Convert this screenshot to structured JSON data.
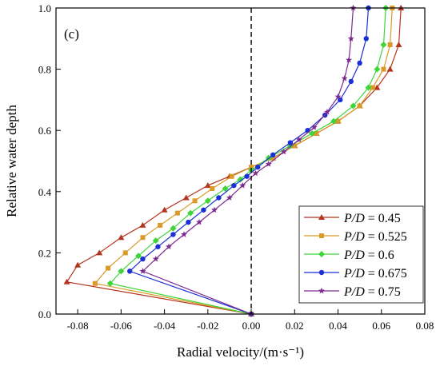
{
  "chart_data": {
    "type": "line",
    "panel_label": "(c)",
    "xlabel": "Radial velocity/(m·s⁻¹)",
    "ylabel": "Relative water depth",
    "xlim": [
      -0.09,
      0.08
    ],
    "ylim": [
      0.0,
      1.0
    ],
    "x_ticks": [
      "-0.08",
      "-0.06",
      "-0.04",
      "-0.02",
      "0.00",
      "0.02",
      "0.04",
      "0.06",
      "0.08"
    ],
    "x_tick_values": [
      -0.08,
      -0.06,
      -0.04,
      -0.02,
      0.0,
      0.02,
      0.04,
      0.06,
      0.08
    ],
    "y_ticks": [
      "0.0",
      "0.2",
      "0.4",
      "0.6",
      "0.8",
      "1.0"
    ],
    "y_tick_values": [
      0.0,
      0.2,
      0.4,
      0.6,
      0.8,
      1.0
    ],
    "reference_line_x": 0.0,
    "grid": false,
    "legend_position": "bottom-right",
    "series": [
      {
        "name": "P/D = 0.45",
        "legend_var": "P/D",
        "legend_value": "= 0.45",
        "color": "#b5341e",
        "marker": "triangle",
        "x": [
          0.0,
          -0.085,
          -0.08,
          -0.07,
          -0.06,
          -0.05,
          -0.04,
          -0.03,
          -0.02,
          -0.01,
          0.0,
          0.01,
          0.02,
          0.03,
          0.04,
          0.05,
          0.058,
          0.064,
          0.068,
          0.069
        ],
        "y": [
          0.0,
          0.105,
          0.16,
          0.2,
          0.25,
          0.29,
          0.34,
          0.38,
          0.42,
          0.45,
          0.48,
          0.51,
          0.55,
          0.59,
          0.63,
          0.68,
          0.74,
          0.8,
          0.88,
          1.0
        ]
      },
      {
        "name": "P/D = 0.525",
        "legend_var": "P/D",
        "legend_value": "= 0.525",
        "color": "#d99a26",
        "marker": "square",
        "x": [
          0.0,
          -0.072,
          -0.066,
          -0.058,
          -0.05,
          -0.042,
          -0.034,
          -0.026,
          -0.018,
          -0.009,
          0.0,
          0.01,
          0.02,
          0.03,
          0.04,
          0.05,
          0.056,
          0.061,
          0.064,
          0.065
        ],
        "y": [
          0.0,
          0.1,
          0.15,
          0.2,
          0.25,
          0.29,
          0.33,
          0.37,
          0.41,
          0.45,
          0.48,
          0.51,
          0.55,
          0.59,
          0.63,
          0.68,
          0.74,
          0.8,
          0.88,
          1.0
        ]
      },
      {
        "name": "P/D = 0.6",
        "legend_var": "P/D",
        "legend_value": "= 0.6",
        "color": "#3fd43a",
        "marker": "diamond",
        "x": [
          0.0,
          -0.065,
          -0.06,
          -0.052,
          -0.044,
          -0.036,
          -0.028,
          -0.02,
          -0.012,
          -0.005,
          0.0,
          0.008,
          0.018,
          0.028,
          0.038,
          0.047,
          0.054,
          0.058,
          0.061,
          0.062
        ],
        "y": [
          0.0,
          0.1,
          0.14,
          0.19,
          0.24,
          0.28,
          0.33,
          0.37,
          0.41,
          0.44,
          0.47,
          0.51,
          0.55,
          0.59,
          0.63,
          0.68,
          0.74,
          0.8,
          0.88,
          1.0
        ]
      },
      {
        "name": "P/D = 0.675",
        "legend_var": "P/D",
        "legend_value": "= 0.675",
        "color": "#1a2fd6",
        "marker": "circle",
        "x": [
          0.0,
          -0.056,
          -0.05,
          -0.043,
          -0.036,
          -0.029,
          -0.022,
          -0.015,
          -0.008,
          -0.002,
          0.003,
          0.01,
          0.018,
          0.026,
          0.034,
          0.041,
          0.046,
          0.05,
          0.053,
          0.054
        ],
        "y": [
          0.0,
          0.14,
          0.18,
          0.22,
          0.26,
          0.3,
          0.34,
          0.38,
          0.42,
          0.45,
          0.48,
          0.52,
          0.56,
          0.6,
          0.65,
          0.7,
          0.76,
          0.82,
          0.9,
          1.0
        ]
      },
      {
        "name": "P/D = 0.75",
        "legend_var": "P/D",
        "legend_value": "= 0.75",
        "color": "#7d2b8f",
        "marker": "star",
        "x": [
          0.0,
          -0.05,
          -0.044,
          -0.038,
          -0.031,
          -0.024,
          -0.017,
          -0.01,
          -0.004,
          0.002,
          0.008,
          0.015,
          0.022,
          0.029,
          0.035,
          0.04,
          0.043,
          0.045,
          0.046,
          0.047
        ],
        "y": [
          0.0,
          0.14,
          0.18,
          0.22,
          0.26,
          0.3,
          0.34,
          0.38,
          0.42,
          0.46,
          0.49,
          0.53,
          0.57,
          0.61,
          0.66,
          0.71,
          0.77,
          0.83,
          0.9,
          1.0
        ]
      }
    ]
  }
}
